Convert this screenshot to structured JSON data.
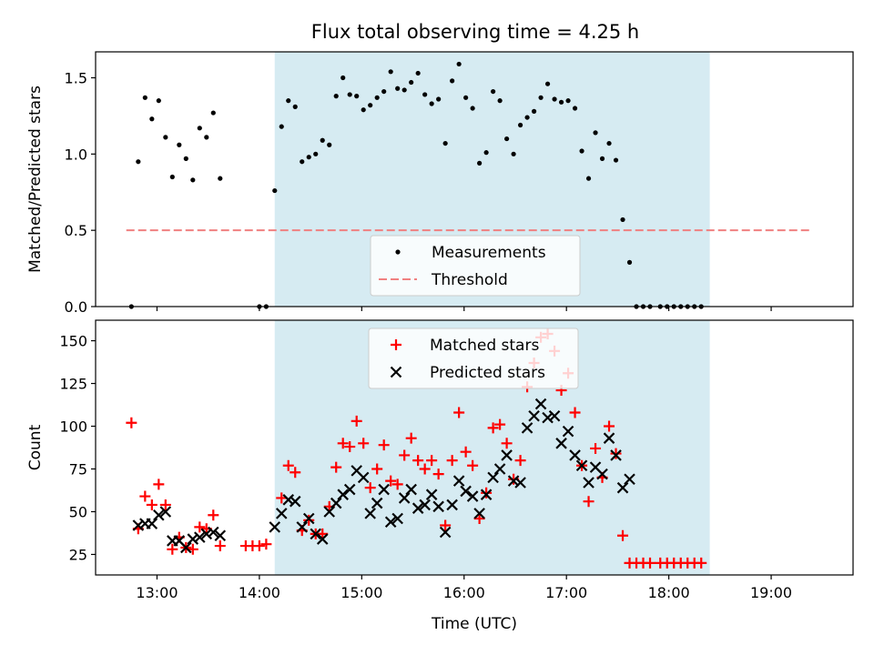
{
  "chart_data": [
    {
      "type": "scatter",
      "title": "Flux total observing time = 4.25 h",
      "ylabel": "Matched/Predicted stars",
      "xlabel": "",
      "xlim": [
        "12:24",
        "19:48"
      ],
      "ylim": [
        0,
        1.67
      ],
      "yticks": [
        0.0,
        0.5,
        1.0,
        1.5
      ],
      "ytick_labels": [
        "0.0",
        "0.5",
        "1.0",
        "1.5"
      ],
      "xticks": [
        "13:00",
        "14:00",
        "15:00",
        "16:00",
        "17:00",
        "18:00",
        "19:00"
      ],
      "observing_window": {
        "start": "14:09",
        "end": "18:24",
        "color": "#add8e6"
      },
      "legend": {
        "placement": "lower-center",
        "entries": [
          "Measurements",
          "Threshold"
        ]
      },
      "threshold": {
        "name": "Threshold",
        "value": 0.5,
        "x_start": "12:42",
        "x_end": "19:24",
        "color": "#f08080"
      },
      "series": [
        {
          "name": "Measurements",
          "marker": "dot",
          "color": "#000000",
          "points": [
            [
              "12:45",
              0.0
            ],
            [
              "12:49",
              0.95
            ],
            [
              "12:53",
              1.37
            ],
            [
              "12:57",
              1.23
            ],
            [
              "13:01",
              1.35
            ],
            [
              "13:05",
              1.11
            ],
            [
              "13:09",
              0.85
            ],
            [
              "13:13",
              1.06
            ],
            [
              "13:17",
              0.97
            ],
            [
              "13:21",
              0.83
            ],
            [
              "13:25",
              1.17
            ],
            [
              "13:29",
              1.11
            ],
            [
              "13:33",
              1.27
            ],
            [
              "13:37",
              0.84
            ],
            [
              "14:00",
              0.0
            ],
            [
              "14:04",
              0.0
            ],
            [
              "14:09",
              0.76
            ],
            [
              "14:13",
              1.18
            ],
            [
              "14:17",
              1.35
            ],
            [
              "14:21",
              1.31
            ],
            [
              "14:25",
              0.95
            ],
            [
              "14:29",
              0.98
            ],
            [
              "14:33",
              1.0
            ],
            [
              "14:37",
              1.09
            ],
            [
              "14:41",
              1.06
            ],
            [
              "14:45",
              1.38
            ],
            [
              "14:49",
              1.5
            ],
            [
              "14:53",
              1.39
            ],
            [
              "14:57",
              1.38
            ],
            [
              "15:01",
              1.29
            ],
            [
              "15:05",
              1.32
            ],
            [
              "15:09",
              1.37
            ],
            [
              "15:13",
              1.41
            ],
            [
              "15:17",
              1.54
            ],
            [
              "15:21",
              1.43
            ],
            [
              "15:25",
              1.42
            ],
            [
              "15:29",
              1.47
            ],
            [
              "15:33",
              1.53
            ],
            [
              "15:37",
              1.39
            ],
            [
              "15:41",
              1.33
            ],
            [
              "15:45",
              1.36
            ],
            [
              "15:49",
              1.07
            ],
            [
              "15:53",
              1.48
            ],
            [
              "15:57",
              1.59
            ],
            [
              "16:01",
              1.37
            ],
            [
              "16:05",
              1.3
            ],
            [
              "16:09",
              0.94
            ],
            [
              "16:13",
              1.01
            ],
            [
              "16:17",
              1.41
            ],
            [
              "16:21",
              1.35
            ],
            [
              "16:25",
              1.1
            ],
            [
              "16:29",
              1.0
            ],
            [
              "16:33",
              1.19
            ],
            [
              "16:37",
              1.24
            ],
            [
              "16:41",
              1.28
            ],
            [
              "16:45",
              1.37
            ],
            [
              "16:49",
              1.46
            ],
            [
              "16:53",
              1.36
            ],
            [
              "16:57",
              1.34
            ],
            [
              "17:01",
              1.35
            ],
            [
              "17:05",
              1.3
            ],
            [
              "17:09",
              1.02
            ],
            [
              "17:13",
              0.84
            ],
            [
              "17:17",
              1.14
            ],
            [
              "17:21",
              0.97
            ],
            [
              "17:25",
              1.07
            ],
            [
              "17:29",
              0.96
            ],
            [
              "17:33",
              0.57
            ],
            [
              "17:37",
              0.29
            ],
            [
              "17:41",
              0.0
            ],
            [
              "17:45",
              0.0
            ],
            [
              "17:49",
              0.0
            ],
            [
              "17:55",
              0.0
            ],
            [
              "17:59",
              0.0
            ],
            [
              "18:03",
              0.0
            ],
            [
              "18:07",
              0.0
            ],
            [
              "18:11",
              0.0
            ],
            [
              "18:15",
              0.0
            ],
            [
              "18:19",
              0.0
            ]
          ]
        }
      ]
    },
    {
      "type": "scatter",
      "title": "",
      "ylabel": "Count",
      "xlabel": "Time (UTC)",
      "xlim": [
        "12:24",
        "19:48"
      ],
      "ylim": [
        13,
        162
      ],
      "yticks": [
        25,
        50,
        75,
        100,
        125,
        150
      ],
      "ytick_labels": [
        "25",
        "50",
        "75",
        "100",
        "125",
        "150"
      ],
      "xticks": [
        "13:00",
        "14:00",
        "15:00",
        "16:00",
        "17:00",
        "18:00",
        "19:00"
      ],
      "xtick_labels": [
        "13:00",
        "14:00",
        "15:00",
        "16:00",
        "17:00",
        "18:00",
        "19:00"
      ],
      "observing_window": {
        "start": "14:09",
        "end": "18:24",
        "color": "#add8e6"
      },
      "legend": {
        "placement": "upper-center",
        "entries": [
          "Matched stars",
          "Predicted stars"
        ]
      },
      "series": [
        {
          "name": "Matched stars",
          "marker": "plus",
          "color": "#ff0000",
          "points": [
            [
              "12:45",
              102
            ],
            [
              "12:49",
              40
            ],
            [
              "12:53",
              59
            ],
            [
              "12:57",
              54
            ],
            [
              "13:01",
              66
            ],
            [
              "13:05",
              54
            ],
            [
              "13:09",
              28
            ],
            [
              "13:13",
              35
            ],
            [
              "13:17",
              29
            ],
            [
              "13:21",
              28
            ],
            [
              "13:25",
              41
            ],
            [
              "13:29",
              40
            ],
            [
              "13:33",
              48
            ],
            [
              "13:37",
              30
            ],
            [
              "13:52",
              30
            ],
            [
              "13:56",
              30
            ],
            [
              "14:00",
              30
            ],
            [
              "14:04",
              31
            ],
            [
              "14:13",
              58
            ],
            [
              "14:17",
              77
            ],
            [
              "14:21",
              73
            ],
            [
              "14:25",
              39
            ],
            [
              "14:29",
              45
            ],
            [
              "14:33",
              37
            ],
            [
              "14:37",
              37
            ],
            [
              "14:41",
              53
            ],
            [
              "14:45",
              76
            ],
            [
              "14:49",
              90
            ],
            [
              "14:53",
              88
            ],
            [
              "14:57",
              103
            ],
            [
              "15:01",
              90
            ],
            [
              "15:05",
              64
            ],
            [
              "15:09",
              75
            ],
            [
              "15:13",
              89
            ],
            [
              "15:17",
              68
            ],
            [
              "15:21",
              66
            ],
            [
              "15:25",
              83
            ],
            [
              "15:29",
              93
            ],
            [
              "15:33",
              80
            ],
            [
              "15:37",
              75
            ],
            [
              "15:41",
              80
            ],
            [
              "15:45",
              72
            ],
            [
              "15:49",
              42
            ],
            [
              "15:53",
              80
            ],
            [
              "15:57",
              108
            ],
            [
              "16:01",
              85
            ],
            [
              "16:05",
              77
            ],
            [
              "16:09",
              46
            ],
            [
              "16:13",
              61
            ],
            [
              "16:17",
              99
            ],
            [
              "16:21",
              101
            ],
            [
              "16:25",
              90
            ],
            [
              "16:29",
              69
            ],
            [
              "16:33",
              80
            ],
            [
              "16:37",
              123
            ],
            [
              "16:41",
              137
            ],
            [
              "16:45",
              152
            ],
            [
              "16:49",
              154
            ],
            [
              "16:53",
              144
            ],
            [
              "16:57",
              121
            ],
            [
              "17:01",
              131
            ],
            [
              "17:05",
              108
            ],
            [
              "17:09",
              77
            ],
            [
              "17:13",
              56
            ],
            [
              "17:17",
              87
            ],
            [
              "17:21",
              70
            ],
            [
              "17:25",
              100
            ],
            [
              "17:29",
              84
            ],
            [
              "17:33",
              36
            ],
            [
              "17:37",
              20
            ],
            [
              "17:41",
              20
            ],
            [
              "17:45",
              20
            ],
            [
              "17:49",
              20
            ],
            [
              "17:55",
              20
            ],
            [
              "17:59",
              20
            ],
            [
              "18:03",
              20
            ],
            [
              "18:07",
              20
            ],
            [
              "18:11",
              20
            ],
            [
              "18:15",
              20
            ],
            [
              "18:19",
              20
            ]
          ]
        },
        {
          "name": "Predicted stars",
          "marker": "x",
          "color": "#000000",
          "points": [
            [
              "12:49",
              42
            ],
            [
              "12:53",
              43
            ],
            [
              "12:57",
              43
            ],
            [
              "13:01",
              48
            ],
            [
              "13:05",
              50
            ],
            [
              "13:09",
              33
            ],
            [
              "13:13",
              33
            ],
            [
              "13:17",
              29
            ],
            [
              "13:21",
              34
            ],
            [
              "13:25",
              35
            ],
            [
              "13:29",
              37
            ],
            [
              "13:33",
              38
            ],
            [
              "13:37",
              36
            ],
            [
              "14:09",
              41
            ],
            [
              "14:13",
              49
            ],
            [
              "14:17",
              57
            ],
            [
              "14:21",
              56
            ],
            [
              "14:25",
              41
            ],
            [
              "14:29",
              46
            ],
            [
              "14:33",
              37
            ],
            [
              "14:37",
              34
            ],
            [
              "14:41",
              50
            ],
            [
              "14:45",
              55
            ],
            [
              "14:49",
              60
            ],
            [
              "14:53",
              63
            ],
            [
              "14:57",
              74
            ],
            [
              "15:01",
              70
            ],
            [
              "15:05",
              49
            ],
            [
              "15:09",
              55
            ],
            [
              "15:13",
              63
            ],
            [
              "15:17",
              44
            ],
            [
              "15:21",
              46
            ],
            [
              "15:25",
              58
            ],
            [
              "15:29",
              63
            ],
            [
              "15:33",
              52
            ],
            [
              "15:37",
              54
            ],
            [
              "15:41",
              60
            ],
            [
              "15:45",
              53
            ],
            [
              "15:49",
              38
            ],
            [
              "15:53",
              54
            ],
            [
              "15:57",
              68
            ],
            [
              "16:01",
              62
            ],
            [
              "16:05",
              59
            ],
            [
              "16:09",
              49
            ],
            [
              "16:13",
              60
            ],
            [
              "16:17",
              70
            ],
            [
              "16:21",
              75
            ],
            [
              "16:25",
              83
            ],
            [
              "16:29",
              68
            ],
            [
              "16:33",
              67
            ],
            [
              "16:37",
              99
            ],
            [
              "16:41",
              106
            ],
            [
              "16:45",
              113
            ],
            [
              "16:49",
              105
            ],
            [
              "16:53",
              106
            ],
            [
              "16:57",
              90
            ],
            [
              "17:01",
              97
            ],
            [
              "17:05",
              83
            ],
            [
              "17:09",
              77
            ],
            [
              "17:13",
              67
            ],
            [
              "17:17",
              76
            ],
            [
              "17:21",
              72
            ],
            [
              "17:25",
              93
            ],
            [
              "17:29",
              83
            ],
            [
              "17:33",
              64
            ],
            [
              "17:37",
              69
            ]
          ]
        }
      ]
    }
  ]
}
